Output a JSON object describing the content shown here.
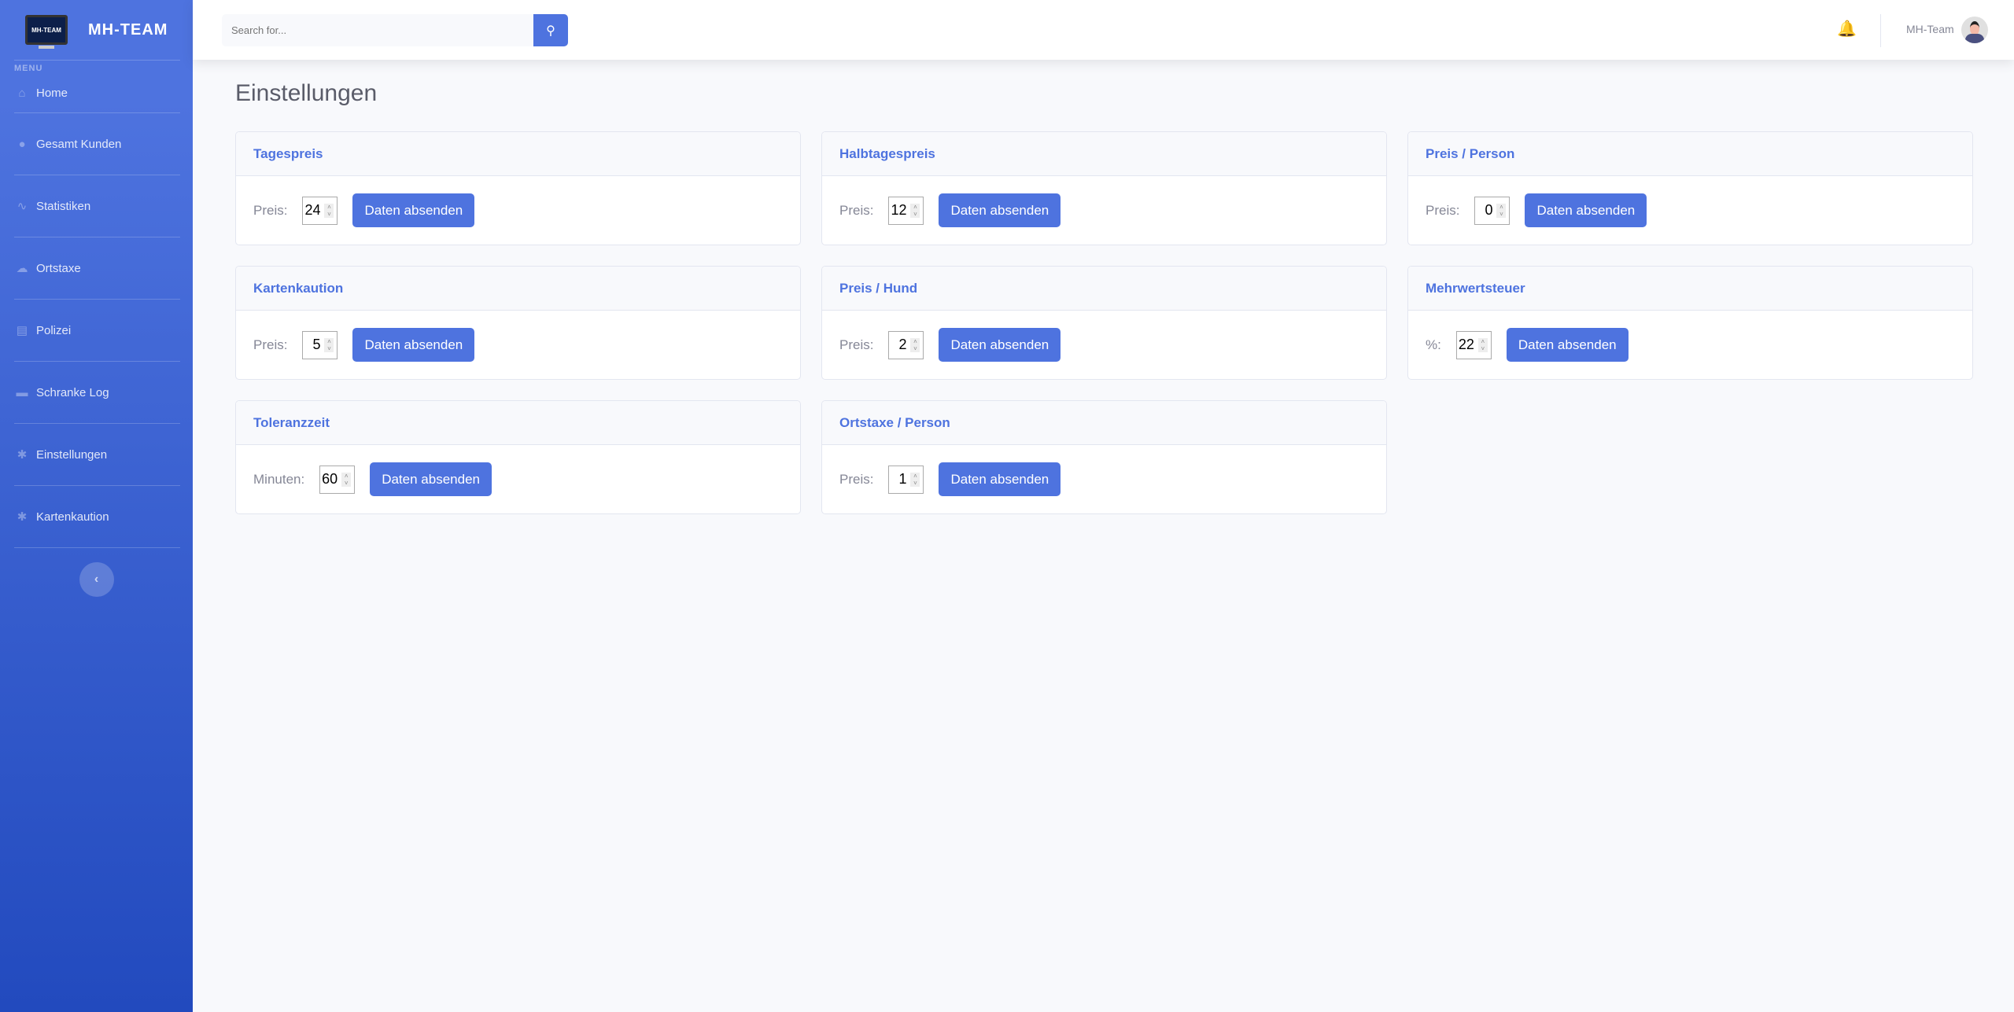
{
  "brand": {
    "name": "MH-TEAM",
    "logo_text": "MH-TEAM"
  },
  "sidebar": {
    "menu_label": "MENU",
    "items": [
      {
        "label": "Home",
        "icon": "home-icon"
      },
      {
        "label": "Gesamt Kunden",
        "icon": "user-icon"
      },
      {
        "label": "Statistiken",
        "icon": "chart-line-icon"
      },
      {
        "label": "Ortstaxe",
        "icon": "cloud-download-icon"
      },
      {
        "label": "Polizei",
        "icon": "file-download-icon"
      },
      {
        "label": "Schranke Log",
        "icon": "truck-icon"
      },
      {
        "label": "Einstellungen",
        "icon": "cogs-icon"
      },
      {
        "label": "Kartenkaution",
        "icon": "cogs-icon"
      }
    ],
    "collapse": "‹"
  },
  "topbar": {
    "search_placeholder": "Search for...",
    "user": "MH-Team"
  },
  "page_title": "Einstellungen",
  "cards": [
    {
      "title": "Tagespreis",
      "label": "Preis:",
      "value": "24",
      "button": "Daten absenden"
    },
    {
      "title": "Halbtagespreis",
      "label": "Preis:",
      "value": "12",
      "button": "Daten absenden"
    },
    {
      "title": "Preis / Person",
      "label": "Preis:",
      "value": "0",
      "button": "Daten absenden"
    },
    {
      "title": "Kartenkaution",
      "label": "Preis:",
      "value": "5",
      "button": "Daten absenden"
    },
    {
      "title": "Preis / Hund",
      "label": "Preis:",
      "value": "2",
      "button": "Daten absenden"
    },
    {
      "title": "Mehrwertsteuer",
      "label": "%:",
      "value": "22",
      "button": "Daten absenden"
    },
    {
      "title": "Toleranzzeit",
      "label": "Minuten:",
      "value": "60",
      "button": "Daten absenden"
    },
    {
      "title": "Ortstaxe / Person",
      "label": "Preis:",
      "value": "1",
      "button": "Daten absenden"
    }
  ],
  "colors": {
    "primary": "#4e73df",
    "sidebar_end": "#224abe",
    "background": "#f8f9fc"
  }
}
